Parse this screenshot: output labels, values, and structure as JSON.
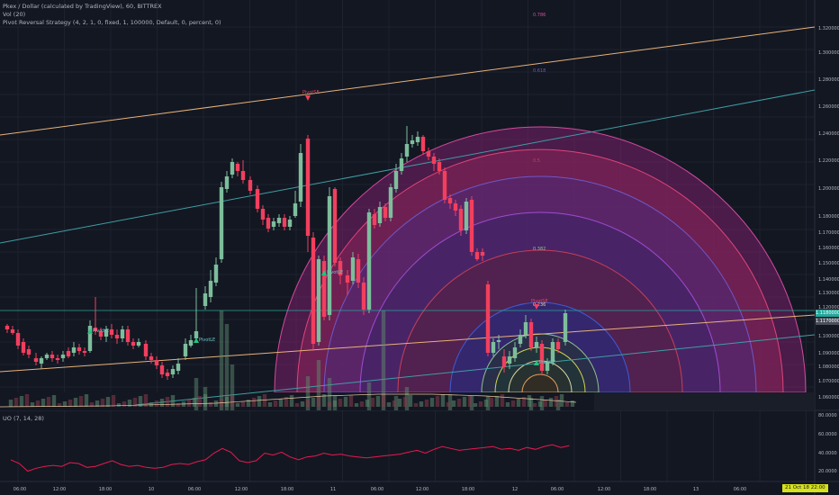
{
  "legend": {
    "symbol_line": "Pkex / Dollar (calculated by TradingView), 60, BITTREX",
    "vol_line": "Vol (20)",
    "strategy_line": "Pivot Reversal Strategy (4, 2, 1, 0, fixed, 1, 100000, Default, 0, percent, 0)"
  },
  "oscillator": {
    "label": "UO (7, 14, 28)",
    "axis_labels": [
      "80.0000",
      "60.0000",
      "40.0000",
      "20.0000"
    ],
    "values": [
      33,
      29,
      21,
      24,
      26,
      27,
      26,
      30,
      29,
      25,
      26,
      29,
      32,
      28,
      26,
      27,
      25,
      24,
      25,
      28,
      29,
      28,
      31,
      33,
      40,
      45,
      41,
      32,
      30,
      32,
      40,
      38,
      41,
      36,
      33,
      36,
      37,
      40,
      38,
      39,
      37,
      36,
      35,
      36,
      37,
      38,
      39,
      41,
      43,
      40,
      44,
      47,
      45,
      43,
      44,
      45,
      46,
      47,
      44,
      45,
      43,
      46,
      44,
      47,
      49,
      46,
      48
    ]
  },
  "price_axis": {
    "labels": [
      "1.32000000",
      "1.30000000",
      "1.28000000",
      "1.26000000",
      "1.24000000",
      "1.22000000",
      "1.20000000",
      "1.18000000",
      "1.17000000",
      "1.16000000",
      "1.15000000",
      "1.14000000",
      "1.13000000",
      "1.12000000",
      "1.10000000",
      "1.09000000",
      "1.08000000",
      "1.07000000",
      "1.06000000"
    ],
    "badges": [
      {
        "text": "1.11800000",
        "color": "#26a69a"
      },
      {
        "text": "1.11700000",
        "color": "#787b86"
      }
    ]
  },
  "time_axis": {
    "labels": [
      "06:00",
      "12:00",
      "18:00",
      "10",
      "06:00",
      "12:00",
      "18:00",
      "11",
      "06:00",
      "12:00",
      "18:00",
      "12",
      "06:00",
      "12:00",
      "18:00",
      "13",
      "06:00"
    ],
    "cursor_badge": "21 Oct 18   22:00"
  },
  "fib_levels": [
    "0.786",
    "0.618",
    "0.5",
    "0.382",
    "0.236"
  ],
  "annotations": {
    "pivot_low_label": "PivotLE",
    "pivot_high_label": "PivotSE"
  },
  "colors": {
    "background": "#131722",
    "grid": "#1e222d",
    "bull": "#7dbd9c",
    "bull_bright": "#26c281",
    "bear": "#f23f5e",
    "trend_orange": "#e8b278",
    "trend_teal": "#3e9ea3"
  }
}
